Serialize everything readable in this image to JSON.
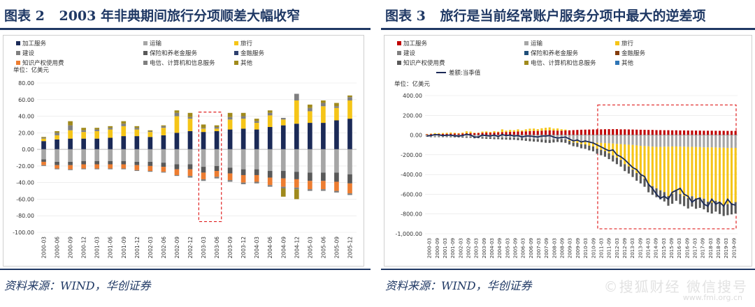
{
  "left": {
    "title_num": "图表 2",
    "title_text": "2003 年非典期间旅行分项顺差大幅收窄",
    "source": "资料来源：WIND，华创证券"
  },
  "right": {
    "title_num": "图表 3",
    "title_text": "旅行是当前经常账户服务分项中最大的逆差项",
    "source": "资料来源：WIND，华创证券"
  },
  "watermark": "©搜狐财经 微信搜号",
  "watermark2": "www.fmi.org.cn",
  "chart_data": [
    {
      "type": "bar",
      "stacked": true,
      "unit_label": "单位：亿美元",
      "ylim": [
        -100,
        80
      ],
      "yticks": [
        "80.00",
        "60.00",
        "40.00",
        "20.00",
        "0.00",
        "-20.00",
        "-40.00",
        "-60.00",
        "-80.00",
        "-100.00"
      ],
      "categories": [
        "2000-03",
        "2000-06",
        "2000-09",
        "2000-12",
        "2001-03",
        "2001-06",
        "2001-09",
        "2001-12",
        "2002-03",
        "2002-06",
        "2002-09",
        "2002-12",
        "2003-03",
        "2003-06",
        "2003-09",
        "2003-12",
        "2004-03",
        "2004-06",
        "2004-09",
        "2004-12",
        "2005-03",
        "2005-06",
        "2005-09",
        "2005-12"
      ],
      "x_tick_labels": [
        "2000-03",
        "2000-06",
        "2000-09",
        "2000-12",
        "2001-03",
        "2001-06",
        "2001-09",
        "2001-12",
        "2002-03",
        "2002-06",
        "2002-09",
        "2002-12",
        "2003-03",
        "2003-06",
        "2003-09",
        "2003-12",
        "2004-03",
        "2004-06",
        "2004-09",
        "2004-12",
        "2005-03",
        "2005-06",
        "2005-09",
        "2005-12"
      ],
      "highlight_categories": [
        "2003-03",
        "2003-06"
      ],
      "series": [
        {
          "name": "加工服务",
          "color": "#1b2a57",
          "values": [
            10,
            12,
            13,
            13,
            13,
            14,
            16,
            16,
            15,
            17,
            20,
            22,
            21,
            22,
            24,
            25,
            24,
            27,
            29,
            31,
            32,
            32,
            35,
            37
          ]
        },
        {
          "name": "运输",
          "color": "#a6a6a6",
          "values": [
            -12,
            -15,
            -15,
            -14,
            -14,
            -14,
            -14,
            -15,
            -15,
            -16,
            -18,
            -18,
            -21,
            -20,
            -22,
            -24,
            -24,
            -26,
            -26,
            -27,
            -28,
            -28,
            -28,
            -30
          ]
        },
        {
          "name": "旅行",
          "color": "#f5c518",
          "values": [
            3,
            5,
            10,
            8,
            9,
            10,
            12,
            8,
            6,
            9,
            20,
            15,
            4,
            3,
            12,
            12,
            8,
            14,
            7,
            28,
            14,
            20,
            15,
            22
          ]
        },
        {
          "name": "建设",
          "color": "#7f7f7f",
          "values": [
            1,
            3,
            6,
            2,
            2,
            2,
            3,
            2,
            1,
            2,
            4,
            2,
            1,
            2,
            3,
            3,
            2,
            3,
            2,
            8,
            4,
            4,
            2,
            4
          ]
        },
        {
          "name": "保险和养老金服务",
          "color": "#595959",
          "values": [
            -3,
            -4,
            -4,
            -4,
            -4,
            -4,
            -4,
            -4,
            -5,
            -5,
            -6,
            -6,
            -7,
            -6,
            -7,
            -7,
            -7,
            -8,
            -9,
            -9,
            -10,
            -10,
            -11,
            -11
          ]
        },
        {
          "name": "金融服务",
          "color": "#2e3f6e",
          "values": [
            0,
            0,
            0,
            0,
            0,
            0,
            0,
            0,
            0,
            0,
            0,
            0,
            0,
            0,
            0,
            0,
            0,
            0,
            0,
            0,
            0,
            0,
            0,
            0
          ]
        },
        {
          "name": "知识产权使用费",
          "color": "#ed7d31",
          "values": [
            -4,
            -4,
            -5,
            -5,
            -5,
            -5,
            -5,
            -6,
            -6,
            -6,
            -7,
            -8,
            -8,
            -7,
            -8,
            -9,
            -8,
            -9,
            -10,
            -10,
            -10,
            -10,
            -11,
            -12
          ]
        },
        {
          "name": "电信、计算机和信息服务",
          "color": "#7f7f7f",
          "values": [
            -1,
            -1,
            -1,
            -1,
            -1,
            -1,
            -1,
            -1,
            -1,
            -1,
            -1,
            -2,
            -2,
            -2,
            -2,
            -2,
            -2,
            -2,
            -2,
            -2,
            -2,
            -2,
            -2,
            -2
          ]
        },
        {
          "name": "其他",
          "color": "#a08a1c",
          "values": [
            1,
            2,
            5,
            3,
            2,
            2,
            3,
            2,
            1,
            1,
            3,
            5,
            4,
            2,
            5,
            4,
            3,
            3,
            -10,
            -12,
            4,
            3,
            4,
            2
          ]
        }
      ]
    },
    {
      "type": "bar",
      "stacked": true,
      "unit_label": "单位：亿美元",
      "ylim": [
        -1000,
        400
      ],
      "yticks": [
        "400.00",
        "200.00",
        "0.00",
        "-200.00",
        "-400.00",
        "-600.00",
        "-800.00",
        "-1,000.00"
      ],
      "x_tick_labels": [
        "2000-03",
        "2000-09",
        "2001-03",
        "2001-09",
        "2002-03",
        "2002-09",
        "2003-03",
        "2003-09",
        "2004-03",
        "2004-09",
        "2005-03",
        "2005-09",
        "2006-03",
        "2006-09",
        "2007-03",
        "2007-09",
        "2008-03",
        "2008-09",
        "2009-03",
        "2009-09",
        "2010-03",
        "2010-09",
        "2011-03",
        "2011-09",
        "2012-03",
        "2012-09",
        "2013-03",
        "2013-09",
        "2014-03",
        "2014-09",
        "2015-03",
        "2015-09",
        "2016-03",
        "2016-09",
        "2017-03",
        "2017-09",
        "2018-03",
        "2018-09",
        "2019-03",
        "2019-09"
      ],
      "quarters": 79,
      "highlight_range": [
        "2011-03",
        "2019-09"
      ],
      "series": [
        {
          "name": "加工服务",
          "color": "#c00000"
        },
        {
          "name": "运输",
          "color": "#a6a6a6"
        },
        {
          "name": "旅行",
          "color": "#f5c518"
        },
        {
          "name": "建设",
          "color": "#7f7f7f"
        },
        {
          "name": "保险和养老金服务",
          "color": "#1f4e79"
        },
        {
          "name": "金融服务",
          "color": "#843c0c"
        },
        {
          "name": "知识产权使用费",
          "color": "#595959"
        },
        {
          "name": "电信、计算机和信息服务",
          "color": "#a08a1c"
        },
        {
          "name": "其他",
          "color": "#2e75b6"
        }
      ],
      "line": {
        "name": "差额:当季值",
        "color": "#1b2a57"
      },
      "processing": [
        8,
        10,
        10,
        12,
        12,
        13,
        14,
        15,
        14,
        16,
        18,
        20,
        20,
        21,
        23,
        25,
        24,
        26,
        28,
        30,
        31,
        32,
        34,
        36,
        37,
        38,
        40,
        42,
        42,
        44,
        46,
        48,
        46,
        45,
        44,
        46,
        48,
        50,
        52,
        54,
        55,
        56,
        57,
        58,
        58,
        59,
        60,
        60,
        60,
        58,
        58,
        57,
        56,
        55,
        54,
        53,
        52,
        52,
        50,
        50,
        49,
        49,
        48,
        48,
        47,
        47,
        46,
        46,
        45,
        45,
        44,
        44,
        44,
        43,
        43,
        43,
        42,
        42,
        42
      ],
      "transport": [
        -12,
        -15,
        -15,
        -14,
        -14,
        -14,
        -14,
        -15,
        -15,
        -16,
        -18,
        -18,
        -21,
        -20,
        -22,
        -24,
        -24,
        -26,
        -26,
        -27,
        -28,
        -28,
        -28,
        -30,
        -32,
        -35,
        -38,
        -40,
        -42,
        -45,
        -48,
        -50,
        -45,
        -40,
        -42,
        -45,
        -50,
        -55,
        -60,
        -62,
        -70,
        -72,
        -75,
        -78,
        -80,
        -82,
        -84,
        -86,
        -90,
        -92,
        -95,
        -98,
        -100,
        -105,
        -110,
        -112,
        -115,
        -118,
        -120,
        -120,
        -118,
        -118,
        -116,
        -116,
        -118,
        -118,
        -120,
        -120,
        -122,
        -122,
        -125,
        -125,
        -125,
        -126,
        -128,
        -128,
        -130,
        -130,
        -130
      ],
      "travel": [
        3,
        5,
        10,
        8,
        9,
        10,
        12,
        8,
        6,
        9,
        20,
        15,
        4,
        3,
        12,
        12,
        8,
        14,
        7,
        28,
        14,
        20,
        15,
        22,
        10,
        20,
        25,
        24,
        18,
        25,
        28,
        30,
        20,
        22,
        15,
        10,
        -10,
        -20,
        -20,
        -30,
        -25,
        -35,
        -40,
        -60,
        -70,
        -80,
        -100,
        -120,
        -140,
        -160,
        -200,
        -220,
        -250,
        -280,
        -300,
        -330,
        -380,
        -400,
        -420,
        -440,
        -460,
        -500,
        -480,
        -450,
        -480,
        -500,
        -520,
        -500,
        -520,
        -510,
        -520,
        -550,
        -560,
        -540,
        -560,
        -580,
        -570,
        -560,
        -550
      ],
      "other_neg": [
        -5,
        -6,
        -6,
        -7,
        -7,
        -7,
        -8,
        -8,
        -9,
        -10,
        -10,
        -10,
        -12,
        -12,
        -14,
        -14,
        -15,
        -16,
        -16,
        -18,
        -18,
        -20,
        -20,
        -22,
        -22,
        -24,
        -25,
        -26,
        -26,
        -28,
        -30,
        -30,
        -30,
        -30,
        -32,
        -34,
        -36,
        -38,
        -40,
        -42,
        -45,
        -48,
        -50,
        -52,
        -55,
        -58,
        -60,
        -62,
        -65,
        -68,
        -70,
        -72,
        -75,
        -78,
        -80,
        -82,
        -85,
        -88,
        -90,
        -92,
        -95,
        -98,
        -100,
        -100,
        -102,
        -102,
        -104,
        -105,
        -105,
        -106,
        -108,
        -108,
        -110,
        -110,
        -112,
        -112,
        -112,
        -114,
        -115
      ],
      "net": [
        -10,
        -5,
        5,
        2,
        -5,
        -2,
        0,
        -8,
        -10,
        -5,
        8,
        0,
        -20,
        -20,
        0,
        -5,
        -10,
        0,
        -15,
        5,
        -5,
        0,
        -10,
        -5,
        -20,
        -10,
        -10,
        -15,
        -20,
        -10,
        -10,
        -5,
        -20,
        -30,
        -25,
        -20,
        -40,
        -60,
        -50,
        -70,
        -60,
        -70,
        -80,
        -100,
        -120,
        -140,
        -160,
        -150,
        -200,
        -220,
        -250,
        -290,
        -330,
        -350,
        -400,
        -420,
        -500,
        -540,
        -600,
        -640,
        -620,
        -650,
        -580,
        -560,
        -540,
        -600,
        -620,
        -680,
        -650,
        -640,
        -700,
        -720,
        -650,
        -700,
        -680,
        -720,
        -650,
        -700,
        -710
      ]
    }
  ]
}
